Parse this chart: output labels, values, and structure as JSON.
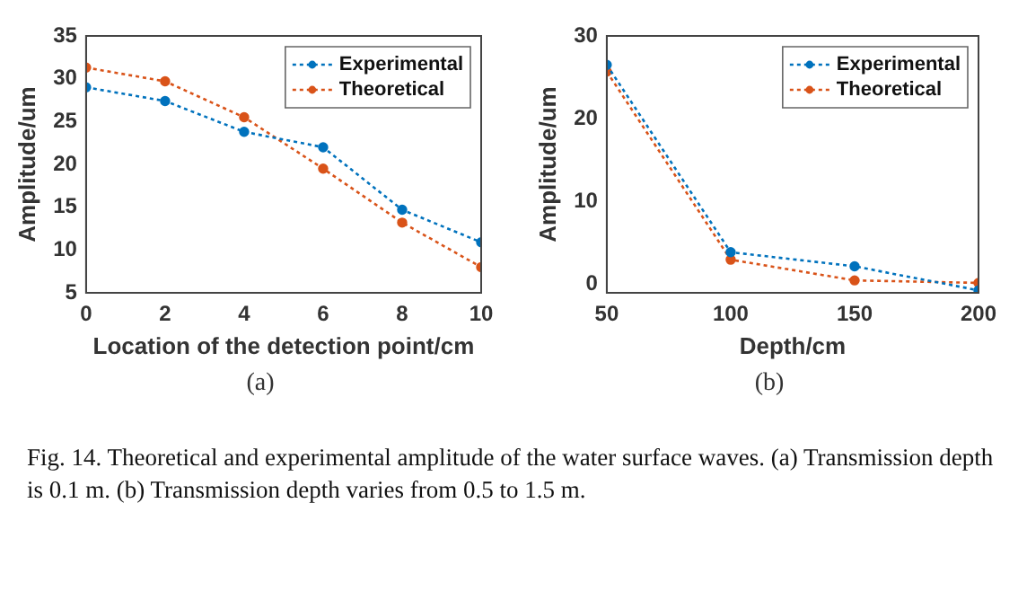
{
  "chart_data": [
    {
      "type": "line",
      "xlabel": "Location of the detection point/cm",
      "ylabel": "Amplitude/um",
      "x": [
        0,
        2,
        4,
        6,
        8,
        10
      ],
      "series": [
        {
          "name": "Experimental",
          "color": "#0072bd",
          "values": [
            29.0,
            27.4,
            23.8,
            22.0,
            14.7,
            10.9
          ]
        },
        {
          "name": "Theoretical",
          "color": "#d95319",
          "values": [
            31.3,
            29.7,
            25.5,
            19.5,
            13.2,
            8.0
          ]
        }
      ],
      "xlim": [
        0,
        10
      ],
      "xticks": [
        0,
        2,
        4,
        6,
        8,
        10
      ],
      "ylim": [
        5,
        35
      ],
      "yticks": [
        5,
        10,
        15,
        20,
        25,
        30,
        35
      ],
      "legend": "top right",
      "marker": "circle",
      "line_style": "dotted",
      "annotations": [
        "(a)",
        "Fig. 14.    Theoretical and experimental amplitude of the water surface waves. (a) Transmission depth is 0.1 m. (b) Transmission depth varies from 0.5  to 1.5 m."
      ]
    },
    {
      "type": "line",
      "xlabel": "Depth/cm",
      "ylabel": "Amplitude/um",
      "x": [
        50,
        100,
        150,
        200
      ],
      "series": [
        {
          "name": "Experimental",
          "color": "#0072bd",
          "values": [
            26.5,
            3.9,
            2.2,
            -0.7
          ]
        },
        {
          "name": "Theoretical",
          "color": "#d95319",
          "values": [
            25.7,
            3.0,
            0.5,
            0.2
          ]
        }
      ],
      "xlim": [
        50,
        200
      ],
      "xticks": [
        50,
        100,
        150,
        200
      ],
      "ylim": [
        -1,
        30
      ],
      "yticks": [
        0,
        10,
        20,
        30
      ],
      "legend": "top right",
      "marker": "circle",
      "line_style": "dotted",
      "annotations": [
        "(b)"
      ]
    }
  ]
}
